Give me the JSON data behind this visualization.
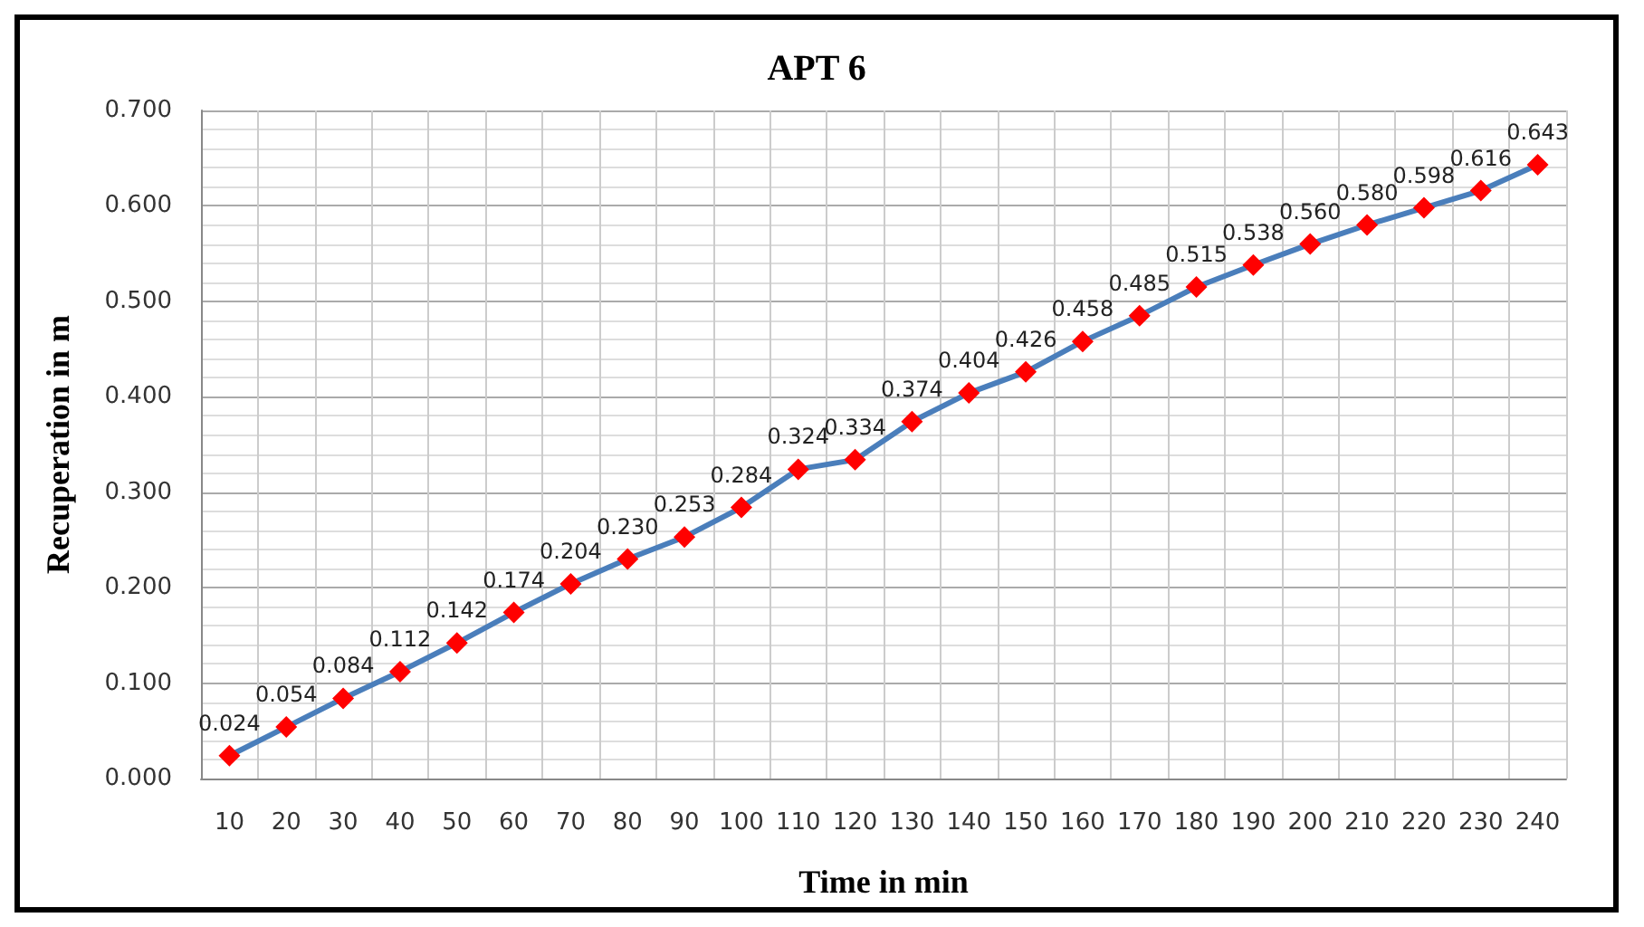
{
  "chart_data": {
    "type": "line",
    "title": "APT 6",
    "xlabel": "Time in min",
    "ylabel": "Recuperation in m",
    "categories": [
      "10",
      "20",
      "30",
      "40",
      "50",
      "60",
      "70",
      "80",
      "90",
      "100",
      "110",
      "120",
      "130",
      "140",
      "150",
      "160",
      "170",
      "180",
      "190",
      "200",
      "210",
      "220",
      "230",
      "240"
    ],
    "series": [
      {
        "color": "#4a7ebb",
        "colors": [
          "#ff0000",
          "#ff0000",
          "#ff0000",
          "#ff0000",
          "#ff0000",
          "#ff0000",
          "#ff0000",
          "#ff0000",
          "#ff0000",
          "#ff0000",
          "#ff0000",
          "#ff0000",
          "#ff0000",
          "#ff0000",
          "#ff0000",
          "#ff0000",
          "#ff0000",
          "#ff0000",
          "#ff0000",
          "#ff0000",
          "#ff0000",
          "#ff0000",
          "#ff0000",
          "#ff0000"
        ],
        "values": [
          0.024,
          0.054,
          0.084,
          0.112,
          0.142,
          0.174,
          0.204,
          0.23,
          0.253,
          0.284,
          0.324,
          0.334,
          0.374,
          0.404,
          0.426,
          0.458,
          0.485,
          0.515,
          0.538,
          0.56,
          0.58,
          0.598,
          0.616,
          0.643
        ],
        "value_labels": [
          "0.024",
          "0.054",
          "0.084",
          "0.112",
          "0.142",
          "0.174",
          "0.204",
          "0.230",
          "0.253",
          "0.284",
          "0.324",
          "0.334",
          "0.374",
          "0.404",
          "0.426",
          "0.458",
          "0.485",
          "0.515",
          "0.538",
          "0.560",
          "0.580",
          "0.598",
          "0.616",
          "0.643"
        ]
      }
    ],
    "ylim": [
      0,
      0.7
    ],
    "yticks": [
      {
        "value": 0,
        "label": "0.000"
      },
      {
        "value": 0.1,
        "label": "0.100"
      },
      {
        "value": 0.2,
        "label": "0.200"
      },
      {
        "value": 0.3,
        "label": "0.300"
      },
      {
        "value": 0.4,
        "label": "0.400"
      },
      {
        "value": 0.5,
        "label": "0.500"
      },
      {
        "value": 0.6,
        "label": "0.600"
      },
      {
        "value": 0.7,
        "label": "0.700"
      }
    ],
    "grid": true,
    "marker": "diamond",
    "line_style": "solid"
  }
}
